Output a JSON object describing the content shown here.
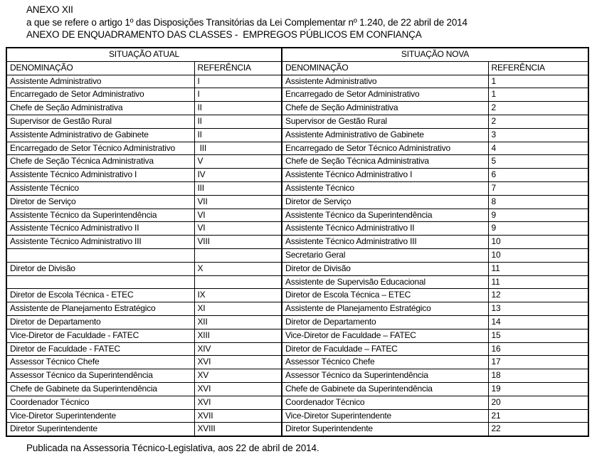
{
  "colors": {
    "text": "#000000",
    "background": "#ffffff",
    "border": "#000000"
  },
  "header": {
    "line1": "ANEXO XII",
    "line2": "a que se refere o artigo 1º das Disposições Transitórias da Lei Complementar nº 1.240, de 22 abril de 2014",
    "line3": "ANEXO DE ENQUADRAMENTO DAS CLASSES -  EMPREGOS PÚBLICOS EM CONFIANÇA"
  },
  "table": {
    "group_headers": [
      "SITUAÇÃO ATUAL",
      "SITUAÇÃO NOVA"
    ],
    "column_headers": [
      "DENOMINAÇÃO",
      "REFERÊNCIA",
      "DENOMINAÇÃO",
      "REFERÊNCIA"
    ],
    "rows": [
      [
        "Assistente Administrativo",
        "I",
        "Assistente Administrativo",
        "1"
      ],
      [
        "Encarregado de Setor Administrativo",
        "I",
        "Encarregado de Setor Administrativo",
        "1"
      ],
      [
        "Chefe de Seção Administrativa",
        "II",
        "Chefe de Seção Administrativa",
        "2"
      ],
      [
        "Supervisor de Gestão Rural",
        "II",
        "Supervisor de Gestão Rural",
        "2"
      ],
      [
        "Assistente Administrativo de Gabinete",
        "II",
        "Assistente Administrativo de Gabinete",
        "3"
      ],
      [
        "Encarregado de Setor Técnico Administrativo",
        " III",
        "Encarregado de Setor Técnico Administrativo",
        "4"
      ],
      [
        "Chefe de Seção Técnica Administrativa",
        "V",
        "Chefe de Seção Técnica Administrativa",
        "5"
      ],
      [
        "Assistente Técnico Administrativo I",
        "IV",
        "Assistente Técnico Administrativo I",
        "6"
      ],
      [
        "Assistente Técnico",
        "III",
        "Assistente Técnico",
        "7"
      ],
      [
        "Diretor de Serviço",
        "VII",
        "Diretor de Serviço",
        "8"
      ],
      [
        "Assistente Técnico da Superintendência",
        "VI",
        "Assistente Técnico da Superintendência",
        "9"
      ],
      [
        "Assistente Técnico Administrativo II",
        "VI",
        "Assistente Técnico Administrativo II",
        "9"
      ],
      [
        "Assistente Técnico Administrativo III",
        "VIII",
        "Assistente Técnico Administrativo III",
        "10"
      ],
      [
        "",
        "",
        "Secretario Geral",
        "10"
      ],
      [
        "Diretor de Divisão",
        "X",
        "Diretor de Divisão",
        "11"
      ],
      [
        "",
        "",
        "Assistente de Supervisão Educacional",
        "11"
      ],
      [
        "Diretor de Escola Técnica - ETEC",
        "IX",
        "Diretor de Escola Técnica – ETEC",
        "12"
      ],
      [
        "Assistente de Planejamento Estratégico",
        "XI",
        "Assistente de Planejamento Estratégico",
        "13"
      ],
      [
        "Diretor de Departamento",
        "XII",
        "Diretor de Departamento",
        "14"
      ],
      [
        "Vice-Diretor de Faculdade - FATEC",
        "XIII",
        "Vice-Diretor de Faculdade – FATEC",
        "15"
      ],
      [
        "Diretor de Faculdade - FATEC",
        "XIV",
        "Diretor de Faculdade – FATEC",
        "16"
      ],
      [
        "Assessor Técnico Chefe",
        "XVI",
        "Assessor Técnico Chefe",
        "17"
      ],
      [
        "Assessor Técnico da Superintendência",
        "XV",
        "Assessor Técnico da Superintendência",
        "18"
      ],
      [
        "Chefe de Gabinete da Superintendência",
        "XVI",
        "Chefe de Gabinete da Superintendência",
        "19"
      ],
      [
        "Coordenador Técnico",
        "XVI",
        "Coordenador Técnico",
        "20"
      ],
      [
        "Vice-Diretor Superintendente",
        "XVII",
        "Vice-Diretor Superintendente",
        "21"
      ],
      [
        "Diretor Superintendente",
        "XVIII",
        "Diretor Superintendente",
        "22"
      ]
    ]
  },
  "footer": {
    "text": "Publicada na Assessoria Técnico-Legislativa, aos 22 de abril de 2014."
  }
}
